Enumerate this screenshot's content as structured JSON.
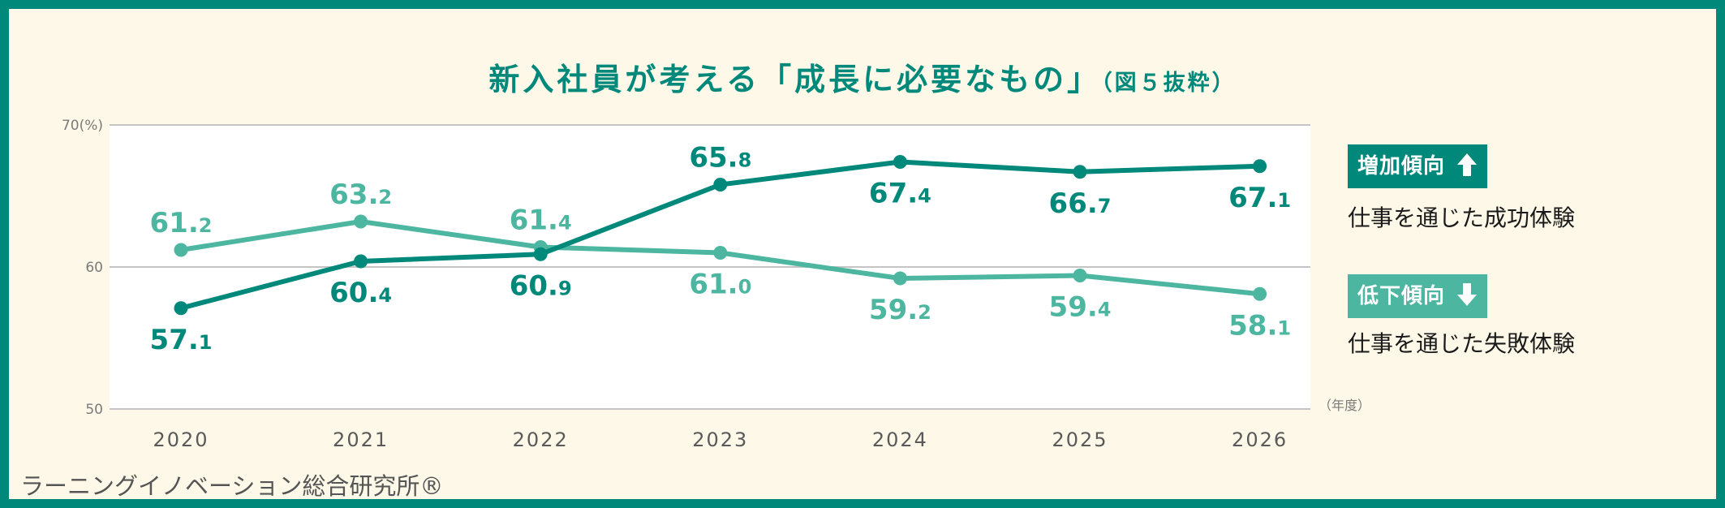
{
  "title": {
    "main": "新入社員が考える「成長に必要なもの」",
    "sub": "（図５抜粋）"
  },
  "chart_data": {
    "type": "line",
    "x": [
      "2020",
      "2021",
      "2022",
      "2023",
      "2024",
      "2025",
      "2026"
    ],
    "xunit": "（年度）",
    "ylim": [
      50,
      70
    ],
    "yticks": [
      "50",
      "60",
      "70(%)"
    ],
    "grid": true,
    "series": [
      {
        "name": "仕事を通じた成功体験",
        "badge": "増加傾向",
        "badge_icon": "arrow-up-icon",
        "color": "#00897b",
        "values": [
          57.1,
          60.4,
          60.9,
          65.8,
          67.4,
          66.7,
          67.1
        ]
      },
      {
        "name": "仕事を通じた失敗体験",
        "badge": "低下傾向",
        "badge_icon": "arrow-down-icon",
        "color": "#4db6a1",
        "values": [
          61.2,
          63.2,
          61.4,
          61.0,
          59.2,
          59.4,
          58.1
        ]
      }
    ]
  },
  "source": "ラーニングイノベーション総合研究所®"
}
